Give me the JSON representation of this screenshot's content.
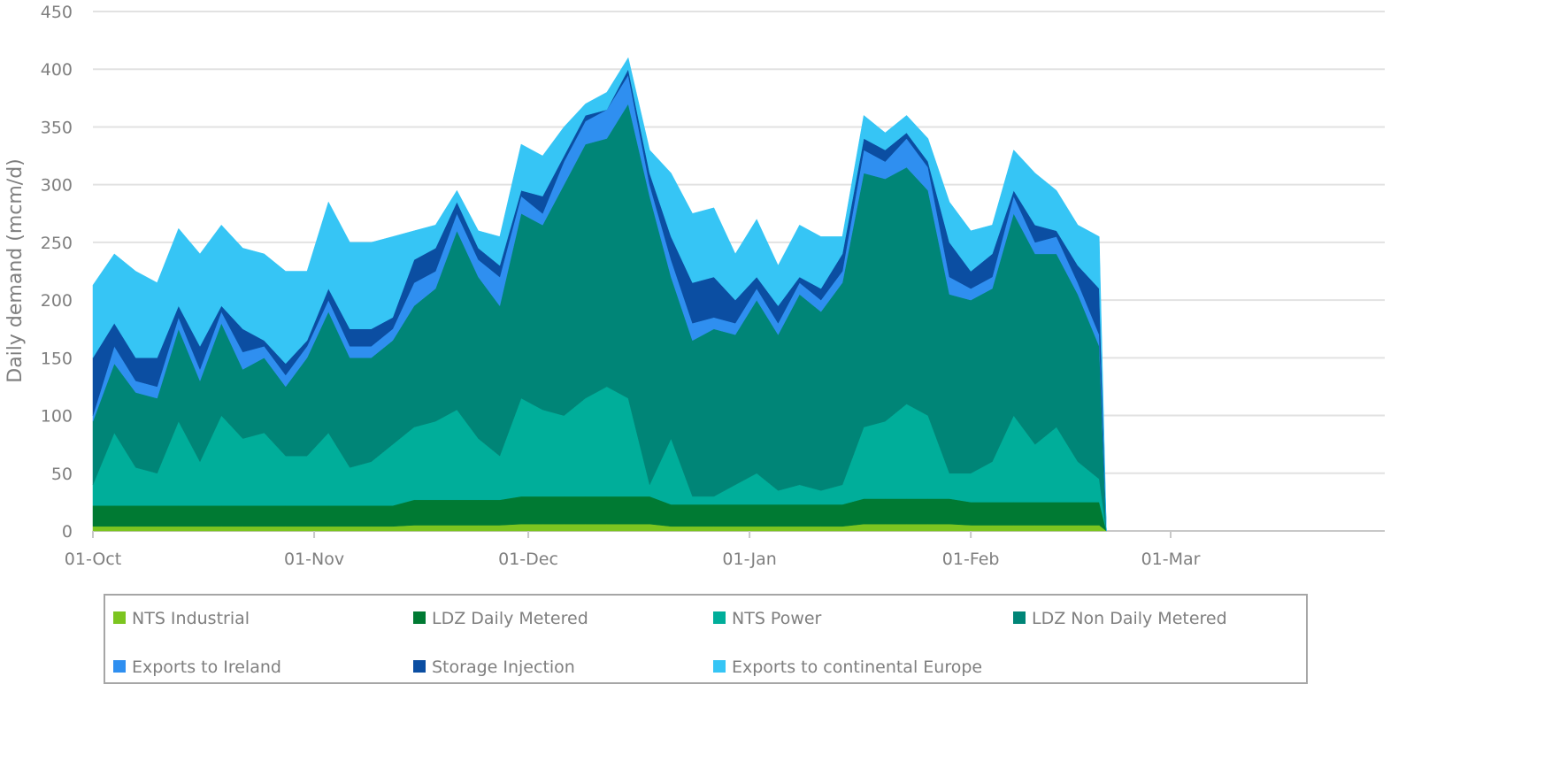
{
  "chart_data": {
    "type": "stacked_area",
    "y_label": "Daily demand (mcm/d)",
    "x": [
      0,
      3,
      6,
      9,
      12,
      15,
      18,
      21,
      24,
      27,
      30,
      33,
      36,
      39,
      42,
      45,
      48,
      51,
      54,
      57,
      60,
      63,
      66,
      69,
      72,
      75,
      78,
      81,
      84,
      87,
      90,
      93,
      96,
      99,
      102,
      105,
      108,
      111,
      114,
      117,
      120,
      123,
      126,
      129,
      132,
      135,
      138,
      141,
      142
    ],
    "xlim": [
      0,
      181
    ],
    "xticks": [
      {
        "value": 0,
        "label": "01-Oct"
      },
      {
        "value": 31,
        "label": "01-Nov"
      },
      {
        "value": 61,
        "label": "01-Dec"
      },
      {
        "value": 92,
        "label": "01-Jan"
      },
      {
        "value": 123,
        "label": "01-Feb"
      },
      {
        "value": 151,
        "label": "01-Mar"
      }
    ],
    "ylim": [
      0,
      450
    ],
    "yticks": [
      0,
      50,
      100,
      150,
      200,
      250,
      300,
      350,
      400,
      450
    ],
    "grid": true,
    "legend": "bottom",
    "series": [
      {
        "name": "NTS Industrial",
        "color": "#7cc520",
        "values": [
          4,
          4,
          4,
          4,
          4,
          4,
          4,
          4,
          4,
          4,
          4,
          4,
          4,
          4,
          4,
          5,
          5,
          5,
          5,
          5,
          6,
          6,
          6,
          6,
          6,
          6,
          6,
          4,
          4,
          4,
          4,
          4,
          4,
          4,
          4,
          4,
          6,
          6,
          6,
          6,
          6,
          5,
          5,
          5,
          5,
          5,
          5,
          5,
          0
        ]
      },
      {
        "name": "LDZ Daily Metered",
        "color": "#007a33",
        "values": [
          18,
          18,
          18,
          18,
          18,
          18,
          18,
          18,
          18,
          18,
          18,
          18,
          18,
          18,
          18,
          22,
          22,
          22,
          22,
          22,
          24,
          24,
          24,
          24,
          24,
          24,
          24,
          19,
          19,
          19,
          19,
          19,
          19,
          19,
          19,
          19,
          22,
          22,
          22,
          22,
          22,
          20,
          20,
          20,
          20,
          20,
          20,
          20,
          0
        ]
      },
      {
        "name": "NTS Power",
        "color": "#00ae9a",
        "values": [
          18,
          63,
          33,
          28,
          73,
          38,
          78,
          58,
          63,
          43,
          43,
          63,
          33,
          38,
          53,
          63,
          68,
          78,
          53,
          38,
          85,
          75,
          70,
          85,
          95,
          85,
          10,
          57,
          7,
          7,
          17,
          27,
          12,
          17,
          12,
          17,
          62,
          67,
          82,
          72,
          22,
          25,
          35,
          75,
          50,
          65,
          35,
          20,
          0
        ]
      },
      {
        "name": "LDZ Non Daily Metered",
        "color": "#008577",
        "values": [
          55,
          60,
          65,
          65,
          80,
          70,
          80,
          60,
          65,
          60,
          85,
          105,
          95,
          90,
          90,
          105,
          115,
          155,
          140,
          130,
          160,
          160,
          200,
          220,
          215,
          255,
          250,
          140,
          135,
          145,
          130,
          150,
          135,
          165,
          155,
          175,
          220,
          210,
          205,
          195,
          155,
          150,
          150,
          175,
          165,
          150,
          145,
          115,
          0
        ]
      },
      {
        "name": "Exports to Ireland",
        "color": "#2f8ff0",
        "values": [
          5,
          15,
          10,
          10,
          10,
          10,
          10,
          15,
          10,
          10,
          10,
          10,
          10,
          10,
          10,
          20,
          15,
          15,
          15,
          25,
          15,
          10,
          20,
          20,
          25,
          25,
          10,
          15,
          15,
          10,
          10,
          10,
          10,
          10,
          10,
          10,
          20,
          15,
          25,
          20,
          15,
          10,
          10,
          15,
          10,
          15,
          10,
          10,
          0
        ]
      },
      {
        "name": "Storage Injection",
        "color": "#0b4ea2",
        "values": [
          50,
          20,
          20,
          25,
          10,
          20,
          5,
          20,
          5,
          10,
          5,
          10,
          15,
          15,
          10,
          20,
          20,
          10,
          10,
          10,
          5,
          15,
          5,
          5,
          0,
          5,
          10,
          20,
          35,
          35,
          20,
          10,
          15,
          5,
          10,
          15,
          10,
          10,
          5,
          5,
          30,
          15,
          20,
          5,
          15,
          5,
          15,
          40,
          0
        ]
      },
      {
        "name": "Exports to continental Europe",
        "color": "#36c5f5",
        "values": [
          63,
          60,
          75,
          65,
          67,
          80,
          70,
          70,
          75,
          80,
          60,
          75,
          75,
          75,
          70,
          25,
          20,
          10,
          15,
          25,
          40,
          35,
          25,
          10,
          15,
          10,
          20,
          55,
          60,
          60,
          40,
          50,
          35,
          45,
          45,
          15,
          20,
          15,
          15,
          20,
          35,
          35,
          25,
          35,
          45,
          35,
          35,
          45,
          0
        ]
      }
    ]
  }
}
